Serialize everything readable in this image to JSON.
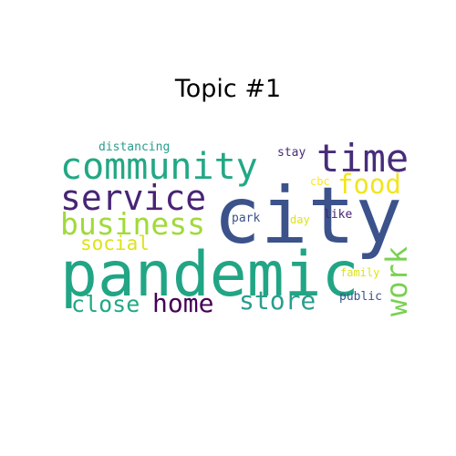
{
  "title": "Topic #1",
  "words": [
    {
      "id": "city",
      "text": "city",
      "color": "#3b528b"
    },
    {
      "id": "pandemic",
      "text": "pandemic",
      "color": "#21a585"
    },
    {
      "id": "community",
      "text": "community",
      "color": "#22a884"
    },
    {
      "id": "time",
      "text": "time",
      "color": "#472c7a"
    },
    {
      "id": "service",
      "text": "service",
      "color": "#482475"
    },
    {
      "id": "business",
      "text": "business",
      "color": "#a0da39"
    },
    {
      "id": "food",
      "text": "food",
      "color": "#f1e51d"
    },
    {
      "id": "work",
      "text": "work",
      "color": "#7ad151"
    },
    {
      "id": "home",
      "text": "home",
      "color": "#440154"
    },
    {
      "id": "store",
      "text": "store",
      "color": "#2a9d8f"
    },
    {
      "id": "close",
      "text": "close",
      "color": "#22a884"
    },
    {
      "id": "social",
      "text": "social",
      "color": "#dde318"
    },
    {
      "id": "distancing",
      "text": "distancing",
      "color": "#2a9d8f"
    },
    {
      "id": "stay",
      "text": "stay",
      "color": "#472c7a"
    },
    {
      "id": "cbc",
      "text": "cbc",
      "color": "#fde725"
    },
    {
      "id": "park",
      "text": "park",
      "color": "#3b528b"
    },
    {
      "id": "day",
      "text": "day",
      "color": "#dde318"
    },
    {
      "id": "like",
      "text": "like",
      "color": "#482475"
    },
    {
      "id": "family",
      "text": "family",
      "color": "#dde318"
    },
    {
      "id": "public",
      "text": "public",
      "color": "#3b528b"
    }
  ]
}
